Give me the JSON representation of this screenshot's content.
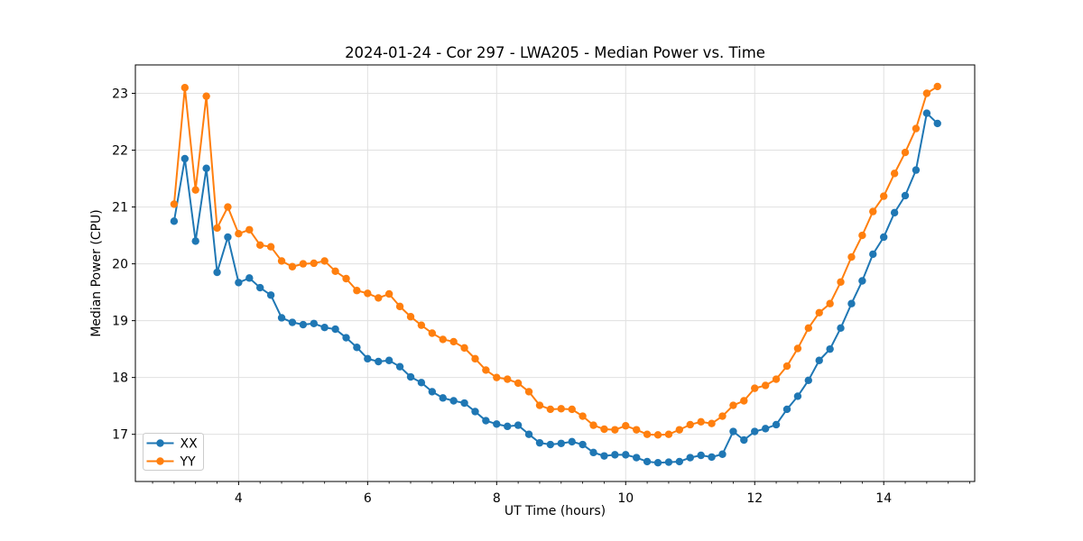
{
  "chart_data": {
    "type": "line",
    "title": "2024-01-24 - Cor 297 - LWA205 - Median Power vs. Time",
    "xlabel": "UT Time (hours)",
    "ylabel": "Median Power (CPU)",
    "xlim": [
      2.4,
      15.41
    ],
    "ylim": [
      16.17,
      23.5
    ],
    "xticks": [
      4,
      6,
      8,
      10,
      12,
      14
    ],
    "yticks": [
      17,
      18,
      19,
      20,
      21,
      22,
      23
    ],
    "x_minor_step": 0.3333333,
    "grid": true,
    "grid_color": "#e0e0e0",
    "spine_color": "#000000",
    "legend": {
      "position": "lower left",
      "border_color": "#cccccc",
      "background": "#ffffff"
    },
    "x": [
      3.0,
      3.167,
      3.333,
      3.5,
      3.667,
      3.833,
      4.0,
      4.167,
      4.333,
      4.5,
      4.667,
      4.833,
      5.0,
      5.167,
      5.333,
      5.5,
      5.667,
      5.833,
      6.0,
      6.167,
      6.333,
      6.5,
      6.667,
      6.833,
      7.0,
      7.167,
      7.333,
      7.5,
      7.667,
      7.833,
      8.0,
      8.167,
      8.333,
      8.5,
      8.667,
      8.833,
      9.0,
      9.167,
      9.333,
      9.5,
      9.667,
      9.833,
      10.0,
      10.167,
      10.333,
      10.5,
      10.667,
      10.833,
      11.0,
      11.167,
      11.333,
      11.5,
      11.667,
      11.833,
      12.0,
      12.167,
      12.333,
      12.5,
      12.667,
      12.833,
      13.0,
      13.167,
      13.333,
      13.5,
      13.667,
      13.833,
      14.0,
      14.167,
      14.333,
      14.5,
      14.667,
      14.833
    ],
    "series": [
      {
        "name": "XX",
        "color": "#1f77b4",
        "values": [
          20.75,
          21.85,
          20.4,
          21.68,
          19.85,
          20.47,
          19.67,
          19.75,
          19.58,
          19.45,
          19.05,
          18.97,
          18.93,
          18.95,
          18.88,
          18.85,
          18.7,
          18.53,
          18.33,
          18.28,
          18.3,
          18.19,
          18.01,
          17.91,
          17.75,
          17.64,
          17.59,
          17.55,
          17.4,
          17.24,
          17.18,
          17.14,
          17.16,
          17.0,
          16.85,
          16.82,
          16.84,
          16.87,
          16.82,
          16.68,
          16.62,
          16.64,
          16.64,
          16.59,
          16.52,
          16.5,
          16.51,
          16.52,
          16.59,
          16.63,
          16.6,
          16.65,
          17.05,
          16.9,
          17.05,
          17.1,
          17.17,
          17.44,
          17.67,
          17.95,
          18.3,
          18.5,
          18.87,
          19.3,
          19.7,
          20.17,
          20.47,
          20.9,
          21.2,
          21.65,
          22.65,
          22.47
        ]
      },
      {
        "name": "YY",
        "color": "#ff7f0e",
        "values": [
          21.05,
          23.1,
          21.3,
          22.95,
          20.63,
          21.0,
          20.53,
          20.6,
          20.33,
          20.3,
          20.05,
          19.95,
          20.0,
          20.01,
          20.05,
          19.87,
          19.74,
          19.53,
          19.48,
          19.4,
          19.47,
          19.25,
          19.07,
          18.92,
          18.78,
          18.67,
          18.63,
          18.52,
          18.33,
          18.13,
          18.0,
          17.97,
          17.9,
          17.75,
          17.51,
          17.44,
          17.45,
          17.44,
          17.32,
          17.16,
          17.09,
          17.08,
          17.15,
          17.08,
          17.0,
          16.99,
          17.0,
          17.08,
          17.17,
          17.22,
          17.19,
          17.32,
          17.51,
          17.59,
          17.81,
          17.86,
          17.97,
          18.2,
          18.51,
          18.87,
          19.14,
          19.3,
          19.68,
          20.12,
          20.5,
          20.92,
          21.19,
          21.59,
          21.96,
          22.38,
          23.0,
          23.12
        ]
      }
    ]
  }
}
